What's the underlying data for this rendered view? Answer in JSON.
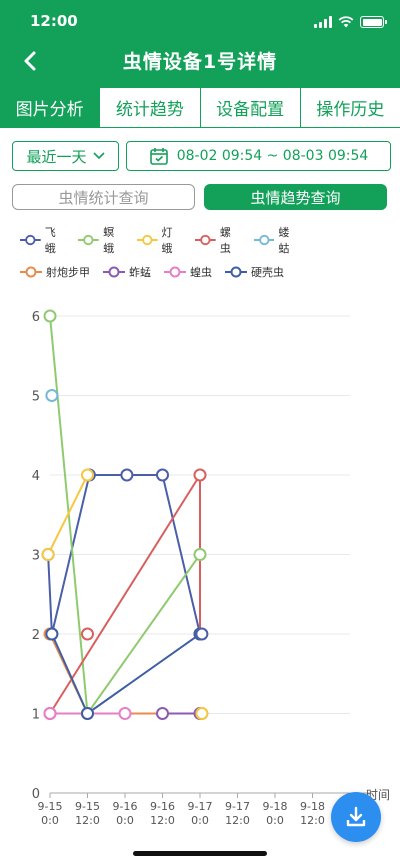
{
  "status_bar": {
    "time": "12:00"
  },
  "header": {
    "title": "虫情设备1号详情",
    "back_icon": "back-arrow-icon"
  },
  "tabs": [
    {
      "label": "图片分析",
      "active": true
    },
    {
      "label": "统计趋势",
      "active": false
    },
    {
      "label": "设备配置",
      "active": false
    },
    {
      "label": "操作历史",
      "active": false
    }
  ],
  "filters": {
    "range_label": "最近一天",
    "date_range": "08-02 09:54 ~ 08-03 09:54"
  },
  "query_tabs": [
    {
      "label": "虫情统计查询",
      "active": false
    },
    {
      "label": "虫情趋势查询",
      "active": true
    }
  ],
  "colors": {
    "primary": "#13a15a",
    "fab": "#2c8ff0"
  },
  "chart_data": {
    "type": "line",
    "x": [
      "9-15 0:0",
      "9-15 12:0",
      "9-16 0:0",
      "9-16 12:0",
      "9-17 0:0",
      "9-17 12:0",
      "9-18 0:0",
      "9-18 12:0"
    ],
    "xlabel": "时间",
    "ylim": [
      0,
      6
    ],
    "yticks": [
      0,
      1,
      2,
      3,
      4,
      5,
      6
    ],
    "grid": true,
    "legend_position": "top-left",
    "series": [
      {
        "name": "飞蛾",
        "color": "#4a5fa8",
        "points": [
          [
            -0.05,
            3
          ],
          [
            0.05,
            2
          ],
          [
            1.05,
            4
          ],
          [
            2.05,
            4
          ],
          [
            3.0,
            4
          ],
          [
            4.0,
            2
          ]
        ]
      },
      {
        "name": "螟蛾",
        "color": "#8fcb6e",
        "points": [
          [
            0.0,
            6
          ],
          [
            1.0,
            1
          ],
          [
            4.0,
            3
          ]
        ]
      },
      {
        "name": "灯蛾",
        "color": "#f5c842",
        "points": [
          [
            -0.05,
            3
          ],
          [
            1.0,
            4
          ]
        ]
      },
      {
        "name": "螺虫",
        "color": "#d95f5f",
        "points": [
          [
            0.0,
            1
          ],
          [
            4.0,
            4
          ],
          [
            4.0,
            2
          ]
        ]
      },
      {
        "name": "蝼蛄",
        "color": "#74b9d8",
        "points": [
          [
            0.05,
            5
          ]
        ]
      },
      {
        "name": "射炮步甲",
        "color": "#ea8a4c",
        "points": [
          [
            0.0,
            2
          ],
          [
            1.0,
            1
          ],
          [
            4.05,
            1
          ]
        ]
      },
      {
        "name": "蚱蜢",
        "color": "#8e59b0",
        "points": [
          [
            3.0,
            1
          ],
          [
            4.0,
            1
          ]
        ]
      },
      {
        "name": "蝗虫",
        "color": "#e67ec8",
        "points": [
          [
            0.0,
            1
          ],
          [
            2.0,
            1
          ]
        ]
      },
      {
        "name": "硬壳虫",
        "color": "#3f5fa5",
        "points": [
          [
            0.05,
            2
          ],
          [
            1.0,
            1
          ],
          [
            4.0,
            2
          ]
        ]
      }
    ],
    "isolated_points": [
      {
        "series": "螺虫",
        "x": 1.0,
        "y": 2
      },
      {
        "series": "灯蛾",
        "x": 4.05,
        "y": 1
      },
      {
        "series": "飞蛾",
        "x": 4.05,
        "y": 2
      }
    ]
  },
  "fab": {
    "icon": "download-icon"
  }
}
